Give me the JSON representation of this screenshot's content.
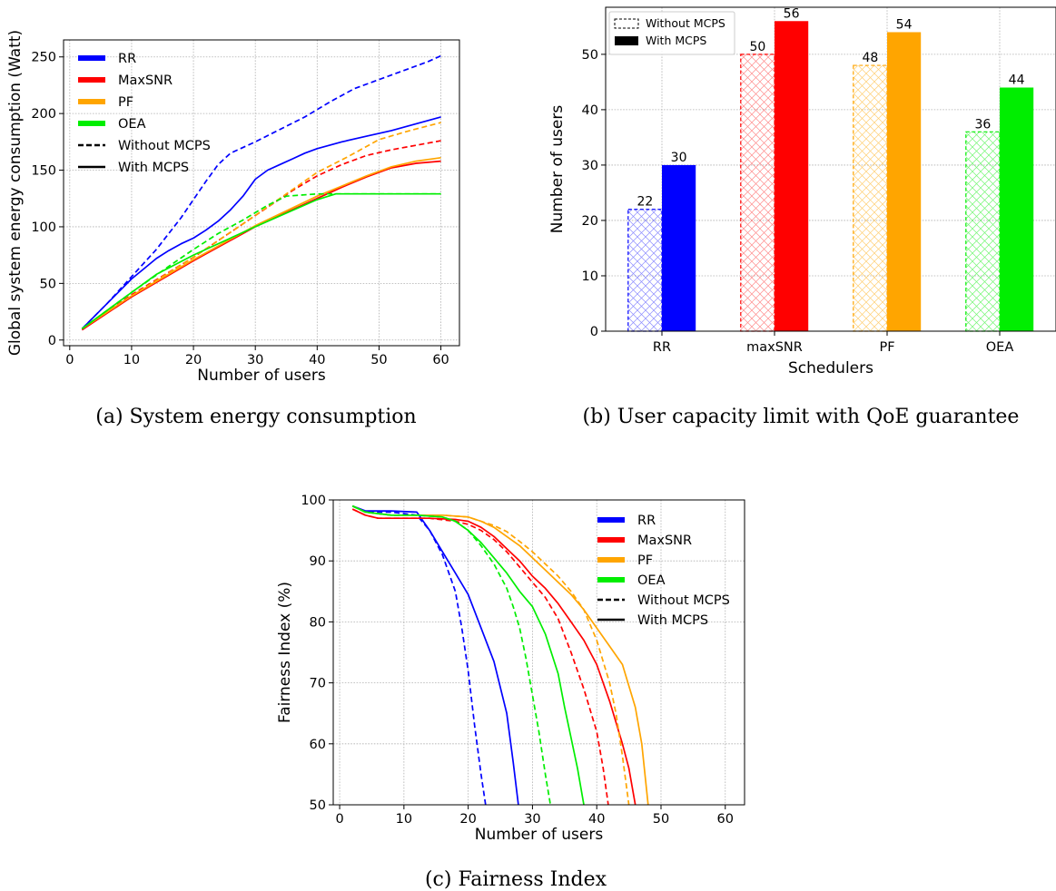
{
  "colors": {
    "RR": "#0000ff",
    "MaxSNR": "#ff0000",
    "PF": "#ffa500",
    "OEA": "#00ee00"
  },
  "chart_data": [
    {
      "id": "a",
      "type": "line",
      "caption": "(a) System energy consumption",
      "xlabel": "Number of users",
      "ylabel": "Global system energy consumption (Watt)",
      "xlim": [
        -1,
        63
      ],
      "ylim": [
        -5,
        265
      ],
      "xticks": [
        0,
        10,
        20,
        30,
        40,
        50,
        60
      ],
      "yticks": [
        0,
        50,
        100,
        150,
        200,
        250
      ],
      "grid": true,
      "legend_position": "top-left",
      "legend": [
        {
          "label": "RR",
          "color": "#0000ff",
          "style": "patch"
        },
        {
          "label": "MaxSNR",
          "color": "#ff0000",
          "style": "patch"
        },
        {
          "label": "PF",
          "color": "#ffa500",
          "style": "patch"
        },
        {
          "label": "OEA",
          "color": "#00ee00",
          "style": "patch"
        },
        {
          "label": "Without MCPS",
          "color": "#000000",
          "style": "dashed"
        },
        {
          "label": "With MCPS",
          "color": "#000000",
          "style": "solid"
        }
      ],
      "series": [
        {
          "scheduler": "RR",
          "mode": "Without MCPS",
          "dashed": true,
          "color": "#0000ff",
          "x": [
            2,
            6,
            10,
            14,
            18,
            22,
            24,
            26,
            30,
            34,
            38,
            42,
            46,
            50,
            54,
            58,
            60
          ],
          "y": [
            10,
            32,
            56,
            80,
            108,
            140,
            155,
            165,
            175,
            186,
            197,
            210,
            222,
            230,
            238,
            246,
            251
          ]
        },
        {
          "scheduler": "RR",
          "mode": "With MCPS",
          "dashed": false,
          "color": "#0000ff",
          "x": [
            2,
            6,
            10,
            12,
            14,
            16,
            18,
            20,
            22,
            24,
            26,
            28,
            30,
            32,
            34,
            36,
            38,
            40,
            44,
            48,
            52,
            56,
            60
          ],
          "y": [
            10,
            32,
            54,
            63,
            72,
            79,
            85,
            90,
            97,
            105,
            115,
            127,
            142,
            150,
            155,
            160,
            165,
            169,
            175,
            180,
            185,
            191,
            197
          ]
        },
        {
          "scheduler": "MaxSNR",
          "mode": "Without MCPS",
          "dashed": true,
          "color": "#ff0000",
          "x": [
            2,
            10,
            20,
            30,
            36,
            40,
            44,
            48,
            52,
            56,
            60
          ],
          "y": [
            9,
            40,
            73,
            110,
            132,
            145,
            155,
            163,
            168,
            172,
            176
          ]
        },
        {
          "scheduler": "MaxSNR",
          "mode": "With MCPS",
          "dashed": false,
          "color": "#ff0000",
          "x": [
            2,
            10,
            20,
            30,
            40,
            44,
            48,
            52,
            56,
            60
          ],
          "y": [
            9,
            38,
            70,
            100,
            125,
            135,
            144,
            152,
            156,
            158
          ]
        },
        {
          "scheduler": "PF",
          "mode": "Without MCPS",
          "dashed": true,
          "color": "#ffa500",
          "x": [
            2,
            10,
            20,
            30,
            40,
            45,
            50,
            55,
            60
          ],
          "y": [
            10,
            39,
            73,
            110,
            148,
            162,
            177,
            185,
            192
          ]
        },
        {
          "scheduler": "PF",
          "mode": "With MCPS",
          "dashed": false,
          "color": "#ffa500",
          "x": [
            2,
            10,
            20,
            30,
            40,
            44,
            48,
            52,
            56,
            60
          ],
          "y": [
            10,
            39,
            71,
            101,
            127,
            136,
            145,
            153,
            158,
            161
          ]
        },
        {
          "scheduler": "OEA",
          "mode": "Without MCPS",
          "dashed": true,
          "color": "#00ee00",
          "x": [
            2,
            10,
            16,
            20,
            24,
            28,
            32,
            35,
            40,
            45,
            50,
            55,
            60
          ],
          "y": [
            10,
            42,
            65,
            80,
            94,
            106,
            119,
            127,
            129,
            129,
            129,
            129,
            129
          ]
        },
        {
          "scheduler": "OEA",
          "mode": "With MCPS",
          "dashed": false,
          "color": "#00ee00",
          "x": [
            2,
            10,
            14,
            20,
            30,
            40,
            43,
            46,
            50,
            55,
            60
          ],
          "y": [
            10,
            42,
            58,
            75,
            100,
            124,
            129,
            129,
            129,
            129,
            129
          ]
        }
      ]
    },
    {
      "id": "b",
      "type": "bar",
      "caption": "(b) User capacity limit with QoE guarantee",
      "xlabel": "Schedulers",
      "ylabel": "Number of users",
      "categories": [
        "RR",
        "maxSNR",
        "PF",
        "OEA"
      ],
      "ylim": [
        0,
        58.5
      ],
      "yticks": [
        0,
        10,
        20,
        30,
        40,
        50
      ],
      "grid": true,
      "legend_position": "top-left",
      "legend": [
        {
          "label": "Without MCPS",
          "style": "hatched-outline"
        },
        {
          "label": "With MCPS",
          "style": "solid"
        }
      ],
      "bar_colors": [
        "#0000ff",
        "#ff0000",
        "#ffa500",
        "#00ee00"
      ],
      "series": [
        {
          "name": "Without MCPS",
          "hatched": true,
          "values": [
            22,
            50,
            48,
            36
          ]
        },
        {
          "name": "With MCPS",
          "hatched": false,
          "values": [
            30,
            56,
            54,
            44
          ]
        }
      ]
    },
    {
      "id": "c",
      "type": "line",
      "caption": "(c) Fairness Index",
      "xlabel": "Number of users",
      "ylabel": "Fairness Index (%)",
      "xlim": [
        -1,
        63
      ],
      "ylim": [
        50,
        100
      ],
      "xticks": [
        0,
        10,
        20,
        30,
        40,
        50,
        60
      ],
      "yticks": [
        50,
        60,
        70,
        80,
        90,
        100
      ],
      "grid": true,
      "legend_position": "top-right",
      "legend": [
        {
          "label": "RR",
          "color": "#0000ff",
          "style": "patch"
        },
        {
          "label": "MaxSNR",
          "color": "#ff0000",
          "style": "patch"
        },
        {
          "label": "PF",
          "color": "#ffa500",
          "style": "patch"
        },
        {
          "label": "OEA",
          "color": "#00ee00",
          "style": "patch"
        },
        {
          "label": "Without MCPS",
          "color": "#000000",
          "style": "dashed"
        },
        {
          "label": "With MCPS",
          "color": "#000000",
          "style": "solid"
        }
      ],
      "series": [
        {
          "scheduler": "RR",
          "mode": "Without MCPS",
          "dashed": true,
          "color": "#0000ff",
          "x": [
            2,
            4,
            8,
            12,
            14,
            16,
            18,
            19,
            20,
            21,
            22,
            22.7
          ],
          "y": [
            99,
            98,
            98,
            97.5,
            95,
            91,
            85,
            79,
            72,
            63,
            55,
            50
          ]
        },
        {
          "scheduler": "RR",
          "mode": "With MCPS",
          "dashed": false,
          "color": "#0000ff",
          "x": [
            2,
            4,
            8,
            12,
            14,
            16,
            18,
            20,
            22,
            24,
            26,
            27,
            27.8
          ],
          "y": [
            99,
            98.2,
            98.2,
            98,
            95,
            91.5,
            88,
            84.5,
            79,
            73.5,
            65,
            57,
            50
          ]
        },
        {
          "scheduler": "MaxSNR",
          "mode": "Without MCPS",
          "dashed": true,
          "color": "#ff0000",
          "x": [
            2,
            4,
            6,
            10,
            14,
            18,
            20,
            22,
            24,
            26,
            28,
            30,
            32,
            34,
            36,
            38,
            40,
            41,
            41.8
          ],
          "y": [
            98.5,
            97.5,
            97,
            97,
            97,
            96.5,
            96,
            95,
            93.5,
            91.5,
            89,
            86.5,
            84,
            80.5,
            75,
            69,
            62,
            56,
            50
          ]
        },
        {
          "scheduler": "MaxSNR",
          "mode": "With MCPS",
          "dashed": false,
          "color": "#ff0000",
          "x": [
            2,
            4,
            6,
            10,
            14,
            18,
            20,
            22,
            24,
            26,
            28,
            30,
            32,
            34,
            36,
            38,
            40,
            42,
            44,
            45,
            46
          ],
          "y": [
            98.5,
            97.5,
            97,
            97,
            97,
            96.8,
            96.5,
            95.5,
            94,
            92,
            90,
            87.5,
            85.5,
            83,
            80,
            77,
            73,
            67,
            60,
            56,
            50
          ]
        },
        {
          "scheduler": "PF",
          "mode": "Without MCPS",
          "dashed": true,
          "color": "#ffa500",
          "x": [
            2,
            4,
            8,
            12,
            16,
            20,
            22,
            24,
            26,
            28,
            30,
            32,
            34,
            36,
            38,
            40,
            42,
            43,
            44,
            45
          ],
          "y": [
            99,
            98,
            97.5,
            97.5,
            97.5,
            97.2,
            96.5,
            95.8,
            94.8,
            93.2,
            91.5,
            89.5,
            87.5,
            85,
            82,
            77,
            70,
            65,
            58,
            50
          ]
        },
        {
          "scheduler": "PF",
          "mode": "With MCPS",
          "dashed": false,
          "color": "#ffa500",
          "x": [
            2,
            4,
            8,
            12,
            16,
            20,
            22,
            24,
            26,
            28,
            30,
            32,
            34,
            36,
            38,
            40,
            42,
            44,
            46,
            47,
            48
          ],
          "y": [
            99,
            98,
            97.5,
            97.5,
            97.5,
            97.2,
            96.5,
            95.5,
            94,
            92.5,
            90.5,
            88.5,
            86.5,
            84.5,
            82,
            79,
            76,
            73,
            66,
            60,
            50
          ]
        },
        {
          "scheduler": "OEA",
          "mode": "Without MCPS",
          "dashed": true,
          "color": "#00ee00",
          "x": [
            2,
            4,
            8,
            12,
            16,
            18,
            20,
            22,
            24,
            26,
            27,
            28,
            29,
            30,
            31,
            32,
            32.8
          ],
          "y": [
            99,
            98,
            97.5,
            97.5,
            97.2,
            96.5,
            95,
            92.5,
            89.5,
            85.5,
            82.5,
            79,
            74,
            68,
            62,
            55,
            50
          ]
        },
        {
          "scheduler": "OEA",
          "mode": "With MCPS",
          "dashed": false,
          "color": "#00ee00",
          "x": [
            2,
            4,
            8,
            12,
            16,
            18,
            20,
            22,
            24,
            26,
            28,
            30,
            32,
            34,
            35,
            36,
            37,
            38
          ],
          "y": [
            99,
            98,
            97.5,
            97.5,
            97.2,
            96.5,
            95,
            93,
            90.5,
            88,
            85,
            82.5,
            78,
            71.5,
            66,
            61,
            56,
            50
          ]
        }
      ]
    }
  ]
}
